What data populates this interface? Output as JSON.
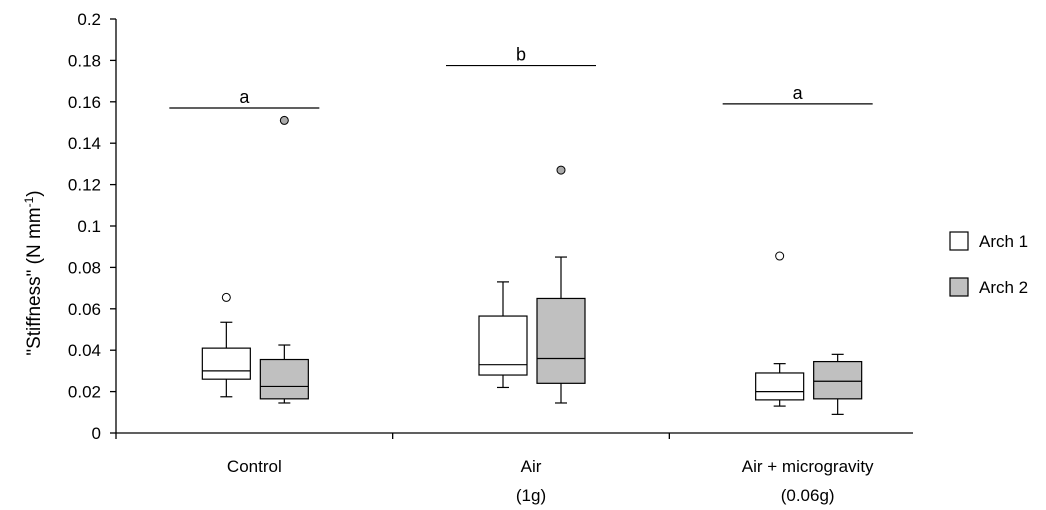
{
  "chart_data": {
    "type": "boxplot",
    "ylabel": {
      "main": "\"Stiffness\" (N mm",
      "sup": "-1",
      "close": ")"
    },
    "ylim": [
      0,
      0.2
    ],
    "yticks": [
      0,
      0.02,
      0.04,
      0.06,
      0.08,
      0.1,
      0.12,
      0.14,
      0.16,
      0.18,
      0.2
    ],
    "ytick_labels": [
      "0",
      "0.02",
      "0.04",
      "0.06",
      "0.08",
      "0.1",
      "0.12",
      "0.14",
      "0.16",
      "0.18",
      "0.2"
    ],
    "legend_position": "right",
    "series": [
      {
        "name": "Arch 1",
        "color": "#ffffff"
      },
      {
        "name": "Arch 2",
        "color": "#c0c0c0"
      }
    ],
    "groups": [
      {
        "label_lines": [
          "Control"
        ],
        "significance": {
          "letter": "a",
          "y": 0.157
        },
        "boxes": [
          {
            "series": "Arch 1",
            "min": 0.0175,
            "q1": 0.026,
            "median": 0.03,
            "q3": 0.041,
            "max": 0.0535,
            "outliers": [
              0.0655
            ]
          },
          {
            "series": "Arch 2",
            "min": 0.0145,
            "q1": 0.0165,
            "median": 0.0225,
            "q3": 0.0355,
            "max": 0.0425,
            "outliers": [
              0.151
            ]
          }
        ]
      },
      {
        "label_lines": [
          "Air",
          "(1g)"
        ],
        "significance": {
          "letter": "b",
          "y": 0.1775
        },
        "boxes": [
          {
            "series": "Arch 1",
            "min": 0.022,
            "q1": 0.028,
            "median": 0.033,
            "q3": 0.0565,
            "max": 0.073,
            "outliers": []
          },
          {
            "series": "Arch 2",
            "min": 0.0145,
            "q1": 0.024,
            "median": 0.036,
            "q3": 0.065,
            "max": 0.085,
            "outliers": [
              0.127
            ]
          }
        ]
      },
      {
        "label_lines": [
          "Air + microgravity",
          "(0.06g)"
        ],
        "significance": {
          "letter": "a",
          "y": 0.159
        },
        "boxes": [
          {
            "series": "Arch 1",
            "min": 0.013,
            "q1": 0.016,
            "median": 0.02,
            "q3": 0.029,
            "max": 0.0335,
            "outliers": [
              0.0855
            ]
          },
          {
            "series": "Arch 2",
            "min": 0.009,
            "q1": 0.0165,
            "median": 0.025,
            "q3": 0.0345,
            "max": 0.038,
            "outliers": []
          }
        ]
      }
    ]
  }
}
